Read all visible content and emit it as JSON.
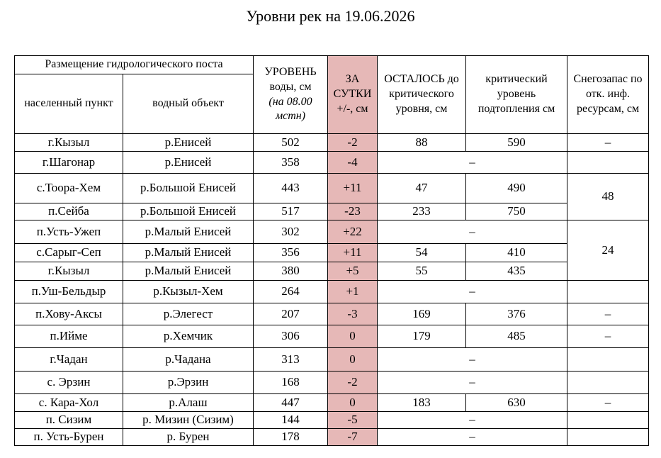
{
  "title": "Уровни рек на 19.06.2026",
  "header": {
    "group": "Размещение гидрологического поста",
    "settlement": "населенный пункт",
    "river": "водный объект",
    "level": "УРОВЕНЬ воды, см",
    "level_note": "(на 08.00 мстн)",
    "change": "ЗА СУТКИ +/-, см",
    "remaining": "ОСТАЛОСЬ до критического уровня, см",
    "critical": "критический уровень подтопления см",
    "snow": "Снегозапас по отк. инф. ресурсам, см"
  },
  "rows": [
    {
      "settlement": "г.Кызыл",
      "river": "р.Енисей",
      "level": "502",
      "change": "-2",
      "remaining": "88",
      "critical": "590",
      "snow": "–"
    },
    {
      "settlement": "г.Шагонар",
      "river": "р.Енисей",
      "level": "358",
      "change": "-4",
      "remaining_critical": "–"
    },
    {
      "settlement": "с.Тоора-Хем",
      "river": "р.Большой Енисей",
      "level": "443",
      "change": "+11",
      "remaining": "47",
      "critical": "490",
      "snow": "48"
    },
    {
      "settlement": "п.Сейба",
      "river": "р.Большой Енисей",
      "level": "517",
      "change": "-23",
      "remaining": "233",
      "critical": "750"
    },
    {
      "settlement": "п.Усть-Ужеп",
      "river": "р.Малый Енисей",
      "level": "302",
      "change": "+22",
      "remaining_critical": "–",
      "snow": "24"
    },
    {
      "settlement": "с.Сарыг-Сеп",
      "river": "р.Малый Енисей",
      "level": "356",
      "change": "+11",
      "remaining": "54",
      "critical": "410"
    },
    {
      "settlement": "г.Кызыл",
      "river": "р.Малый Енисей",
      "level": "380",
      "change": "+5",
      "remaining": "55",
      "critical": "435"
    },
    {
      "settlement": "п.Уш-Бельдыр",
      "river": "р.Кызыл-Хем",
      "level": "264",
      "change": "+1",
      "remaining_critical": "–"
    },
    {
      "settlement": "п.Хову-Аксы",
      "river": "р.Элегест",
      "level": "207",
      "change": "-3",
      "remaining": "169",
      "critical": "376",
      "snow": "–"
    },
    {
      "settlement": "п.Ийме",
      "river": "р.Хемчик",
      "level": "306",
      "change": "0",
      "remaining": "179",
      "critical": "485",
      "snow": "–"
    },
    {
      "settlement": "г.Чадан",
      "river": "р.Чадана",
      "level": "313",
      "change": "0",
      "remaining_critical": "–"
    },
    {
      "settlement": "с. Эрзин",
      "river": "р.Эрзин",
      "level": "168",
      "change": "-2",
      "remaining_critical": "–"
    },
    {
      "settlement": "с. Кара-Хол",
      "river": "р.Алаш",
      "level": "447",
      "change": "0",
      "remaining": "183",
      "critical": "630",
      "snow": "–"
    },
    {
      "settlement": "п. Сизим",
      "river": "р. Мизин (Сизим)",
      "level": "144",
      "change": "-5",
      "remaining_critical": "–"
    },
    {
      "settlement": "п. Усть-Бурен",
      "river": "р. Бурен",
      "level": "178",
      "change": "-7",
      "remaining_critical": "–"
    }
  ]
}
